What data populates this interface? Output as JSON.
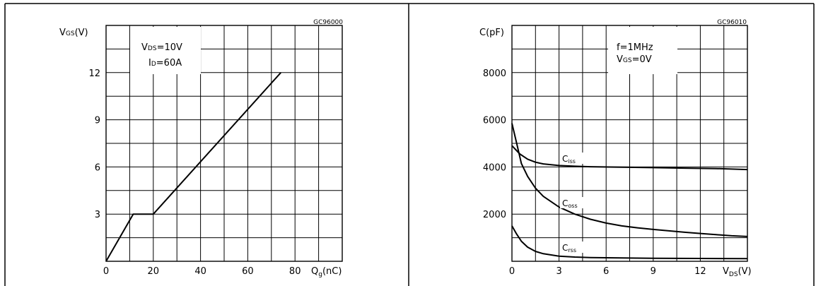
{
  "chart_data": [
    {
      "type": "line",
      "code": "GC96000",
      "ylabel": "V",
      "ylabel_sub": "GS",
      "ylabel_unit": "(V)",
      "xlabel": "Q",
      "xlabel_sub": "g",
      "xlabel_unit": "(nC)",
      "xlim": [
        0,
        100
      ],
      "ylim": [
        0,
        15
      ],
      "x_ticks": [
        0,
        20,
        40,
        60,
        80
      ],
      "y_ticks": [
        3,
        6,
        9,
        12
      ],
      "x_tick_labels": [
        "0",
        "20",
        "40",
        "60",
        "80"
      ],
      "y_tick_labels": [
        "3",
        "6",
        "9",
        "12"
      ],
      "grid": true,
      "grid_x_step": 10,
      "grid_y_step": 1.5,
      "annotations": [
        {
          "main": "V",
          "sub": "DS",
          "rest": "=10V"
        },
        {
          "main": "I",
          "sub": "D",
          "rest": "=60A"
        }
      ],
      "series": [
        {
          "x": [
            0,
            11.5,
            20,
            74
          ],
          "y": [
            0,
            3,
            3,
            12
          ]
        }
      ]
    },
    {
      "type": "line",
      "code": "GC96010",
      "ylabel": "C(pF)",
      "xlabel": "V",
      "xlabel_sub": "DS",
      "xlabel_unit": "(V)",
      "xlim": [
        0,
        15
      ],
      "ylim": [
        0,
        10000
      ],
      "x_ticks": [
        0,
        3,
        6,
        9,
        12
      ],
      "y_ticks": [
        2000,
        4000,
        6000,
        8000
      ],
      "x_tick_labels": [
        "0",
        "3",
        "6",
        "9",
        "12"
      ],
      "y_tick_labels": [
        "2000",
        "4000",
        "6000",
        "8000"
      ],
      "grid": true,
      "grid_x_step": 1.5,
      "grid_y_step": 1000,
      "annotations": [
        {
          "main": "f=1MHz",
          "sub": "",
          "rest": ""
        },
        {
          "main": "V",
          "sub": "GS",
          "rest": "=0V"
        }
      ],
      "series": [
        {
          "name": "iss",
          "label_main": "C",
          "label_sub": "iss",
          "x": [
            0,
            0.5,
            1,
            1.5,
            2,
            3,
            4,
            5,
            7,
            9,
            11,
            13,
            15
          ],
          "y": [
            4900,
            4550,
            4330,
            4200,
            4130,
            4060,
            4030,
            4010,
            3990,
            3970,
            3950,
            3930,
            3890
          ]
        },
        {
          "name": "oss",
          "label_main": "C",
          "label_sub": "oss",
          "x": [
            0,
            0.3,
            0.6,
            1,
            1.5,
            2,
            3,
            4,
            5,
            6,
            7,
            8,
            9,
            10,
            11,
            12,
            13,
            14,
            15
          ],
          "y": [
            5850,
            5000,
            4150,
            3600,
            3100,
            2750,
            2300,
            2000,
            1780,
            1620,
            1500,
            1420,
            1350,
            1290,
            1230,
            1180,
            1130,
            1080,
            1050
          ]
        },
        {
          "name": "rss",
          "label_main": "C",
          "label_sub": "rss",
          "x": [
            0,
            0.3,
            0.6,
            1,
            1.5,
            2,
            3,
            4,
            5,
            7,
            9,
            12,
            15
          ],
          "y": [
            1500,
            1150,
            850,
            600,
            420,
            320,
            220,
            180,
            160,
            140,
            130,
            120,
            110
          ]
        }
      ]
    }
  ]
}
